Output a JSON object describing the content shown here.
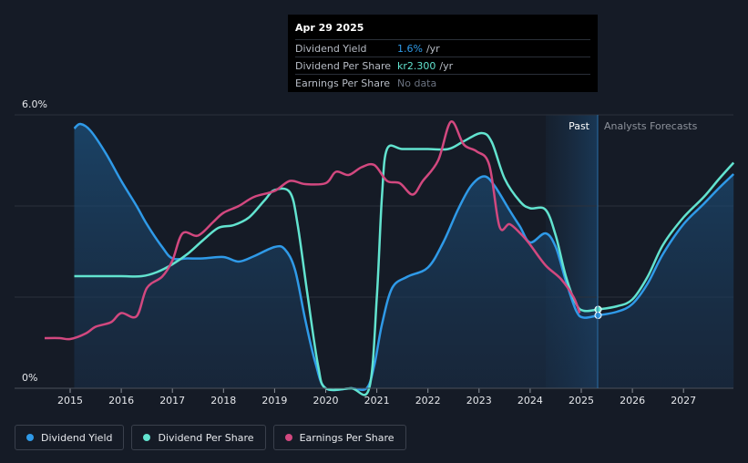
{
  "tooltip": {
    "date": "Apr 29 2025",
    "rows": [
      {
        "label": "Dividend Yield",
        "value": "1.6%",
        "unit": "/yr",
        "color": "#2f9ae8"
      },
      {
        "label": "Dividend Per Share",
        "value": "kr2.300",
        "unit": "/yr",
        "color": "#62e3cf"
      },
      {
        "label": "Earnings Per Share",
        "value": "No data",
        "unit": "",
        "color": "#6b7280"
      }
    ]
  },
  "legend": [
    {
      "label": "Dividend Yield",
      "color": "#2f9ae8"
    },
    {
      "label": "Dividend Per Share",
      "color": "#62e3cf"
    },
    {
      "label": "Earnings Per Share",
      "color": "#d2487f"
    }
  ],
  "chart_data": {
    "type": "line",
    "y_axis_labels": [
      "6.0%",
      "0%"
    ],
    "ylim": [
      0,
      6.0
    ],
    "x_ticks": [
      "2015",
      "2016",
      "2017",
      "2018",
      "2019",
      "2020",
      "2021",
      "2022",
      "2023",
      "2024",
      "2025",
      "2026",
      "2027"
    ],
    "regions": {
      "past": "Past",
      "forecast": "Analysts Forecasts",
      "divider_date": 2025.33
    },
    "series": [
      {
        "name": "Dividend Yield",
        "color": "#2f9ae8",
        "points": [
          [
            2015.08,
            5.7
          ],
          [
            2015.2,
            5.8
          ],
          [
            2015.4,
            5.65
          ],
          [
            2015.7,
            5.15
          ],
          [
            2016.0,
            4.55
          ],
          [
            2016.3,
            4.0
          ],
          [
            2016.5,
            3.6
          ],
          [
            2016.8,
            3.1
          ],
          [
            2017.0,
            2.85
          ],
          [
            2017.3,
            2.85
          ],
          [
            2017.6,
            2.85
          ],
          [
            2018.0,
            2.88
          ],
          [
            2018.3,
            2.78
          ],
          [
            2018.6,
            2.9
          ],
          [
            2019.0,
            3.1
          ],
          [
            2019.2,
            3.05
          ],
          [
            2019.4,
            2.6
          ],
          [
            2019.6,
            1.5
          ],
          [
            2019.8,
            0.55
          ],
          [
            2020.0,
            0.0
          ],
          [
            2020.5,
            0.0
          ],
          [
            2020.8,
            0.0
          ],
          [
            2020.95,
            0.5
          ],
          [
            2021.1,
            1.4
          ],
          [
            2021.3,
            2.2
          ],
          [
            2021.6,
            2.45
          ],
          [
            2022.0,
            2.65
          ],
          [
            2022.3,
            3.2
          ],
          [
            2022.6,
            3.95
          ],
          [
            2022.85,
            4.45
          ],
          [
            2023.1,
            4.65
          ],
          [
            2023.3,
            4.45
          ],
          [
            2023.6,
            3.9
          ],
          [
            2023.8,
            3.55
          ],
          [
            2024.0,
            3.2
          ],
          [
            2024.3,
            3.4
          ],
          [
            2024.5,
            3.1
          ],
          [
            2024.7,
            2.35
          ],
          [
            2024.9,
            1.7
          ],
          [
            2025.05,
            1.55
          ],
          [
            2025.33,
            1.6
          ],
          [
            2025.7,
            1.68
          ],
          [
            2026.0,
            1.85
          ],
          [
            2026.3,
            2.3
          ],
          [
            2026.6,
            2.95
          ],
          [
            2027.0,
            3.6
          ],
          [
            2027.4,
            4.05
          ],
          [
            2027.7,
            4.4
          ],
          [
            2027.98,
            4.7
          ]
        ]
      },
      {
        "name": "Dividend Per Share",
        "color": "#62e3cf",
        "points": [
          [
            2015.08,
            2.46
          ],
          [
            2015.5,
            2.46
          ],
          [
            2016.0,
            2.46
          ],
          [
            2016.4,
            2.46
          ],
          [
            2016.7,
            2.55
          ],
          [
            2017.0,
            2.72
          ],
          [
            2017.3,
            2.95
          ],
          [
            2017.6,
            3.25
          ],
          [
            2017.9,
            3.52
          ],
          [
            2018.2,
            3.58
          ],
          [
            2018.5,
            3.75
          ],
          [
            2018.8,
            4.12
          ],
          [
            2019.0,
            4.35
          ],
          [
            2019.3,
            4.3
          ],
          [
            2019.45,
            3.6
          ],
          [
            2019.65,
            2.0
          ],
          [
            2019.85,
            0.5
          ],
          [
            2020.0,
            0.0
          ],
          [
            2020.5,
            0.0
          ],
          [
            2020.85,
            0.0
          ],
          [
            2021.0,
            2.0
          ],
          [
            2021.1,
            4.2
          ],
          [
            2021.2,
            5.25
          ],
          [
            2021.5,
            5.25
          ],
          [
            2022.0,
            5.25
          ],
          [
            2022.4,
            5.25
          ],
          [
            2022.7,
            5.42
          ],
          [
            2023.05,
            5.6
          ],
          [
            2023.25,
            5.4
          ],
          [
            2023.5,
            4.6
          ],
          [
            2023.8,
            4.1
          ],
          [
            2024.0,
            3.95
          ],
          [
            2024.3,
            3.92
          ],
          [
            2024.5,
            3.35
          ],
          [
            2024.7,
            2.45
          ],
          [
            2024.9,
            1.85
          ],
          [
            2025.05,
            1.7
          ],
          [
            2025.33,
            1.73
          ],
          [
            2025.7,
            1.8
          ],
          [
            2026.0,
            1.95
          ],
          [
            2026.3,
            2.45
          ],
          [
            2026.6,
            3.15
          ],
          [
            2027.0,
            3.75
          ],
          [
            2027.4,
            4.2
          ],
          [
            2027.7,
            4.6
          ],
          [
            2027.98,
            4.95
          ]
        ]
      },
      {
        "name": "Earnings Per Share",
        "color": "#d2487f",
        "points": [
          [
            2014.5,
            1.1
          ],
          [
            2014.8,
            1.1
          ],
          [
            2015.0,
            1.08
          ],
          [
            2015.3,
            1.2
          ],
          [
            2015.5,
            1.35
          ],
          [
            2015.8,
            1.45
          ],
          [
            2016.0,
            1.65
          ],
          [
            2016.3,
            1.58
          ],
          [
            2016.5,
            2.2
          ],
          [
            2016.8,
            2.45
          ],
          [
            2017.0,
            2.8
          ],
          [
            2017.2,
            3.4
          ],
          [
            2017.5,
            3.35
          ],
          [
            2017.8,
            3.65
          ],
          [
            2018.0,
            3.85
          ],
          [
            2018.3,
            4.0
          ],
          [
            2018.6,
            4.2
          ],
          [
            2019.0,
            4.33
          ],
          [
            2019.3,
            4.55
          ],
          [
            2019.6,
            4.48
          ],
          [
            2020.0,
            4.5
          ],
          [
            2020.2,
            4.75
          ],
          [
            2020.45,
            4.68
          ],
          [
            2020.7,
            4.85
          ],
          [
            2020.95,
            4.9
          ],
          [
            2021.2,
            4.55
          ],
          [
            2021.45,
            4.5
          ],
          [
            2021.7,
            4.25
          ],
          [
            2021.9,
            4.55
          ],
          [
            2022.2,
            5.0
          ],
          [
            2022.45,
            5.85
          ],
          [
            2022.7,
            5.35
          ],
          [
            2022.95,
            5.2
          ],
          [
            2023.2,
            4.9
          ],
          [
            2023.4,
            3.55
          ],
          [
            2023.6,
            3.6
          ],
          [
            2023.85,
            3.35
          ],
          [
            2024.0,
            3.15
          ],
          [
            2024.3,
            2.7
          ],
          [
            2024.6,
            2.4
          ],
          [
            2024.85,
            2.0
          ],
          [
            2024.97,
            1.65
          ]
        ]
      }
    ],
    "markers": [
      {
        "series": "Dividend Per Share",
        "x": 2025.33,
        "y": 1.73
      },
      {
        "series": "Dividend Yield",
        "x": 2025.33,
        "y": 1.6
      }
    ]
  }
}
